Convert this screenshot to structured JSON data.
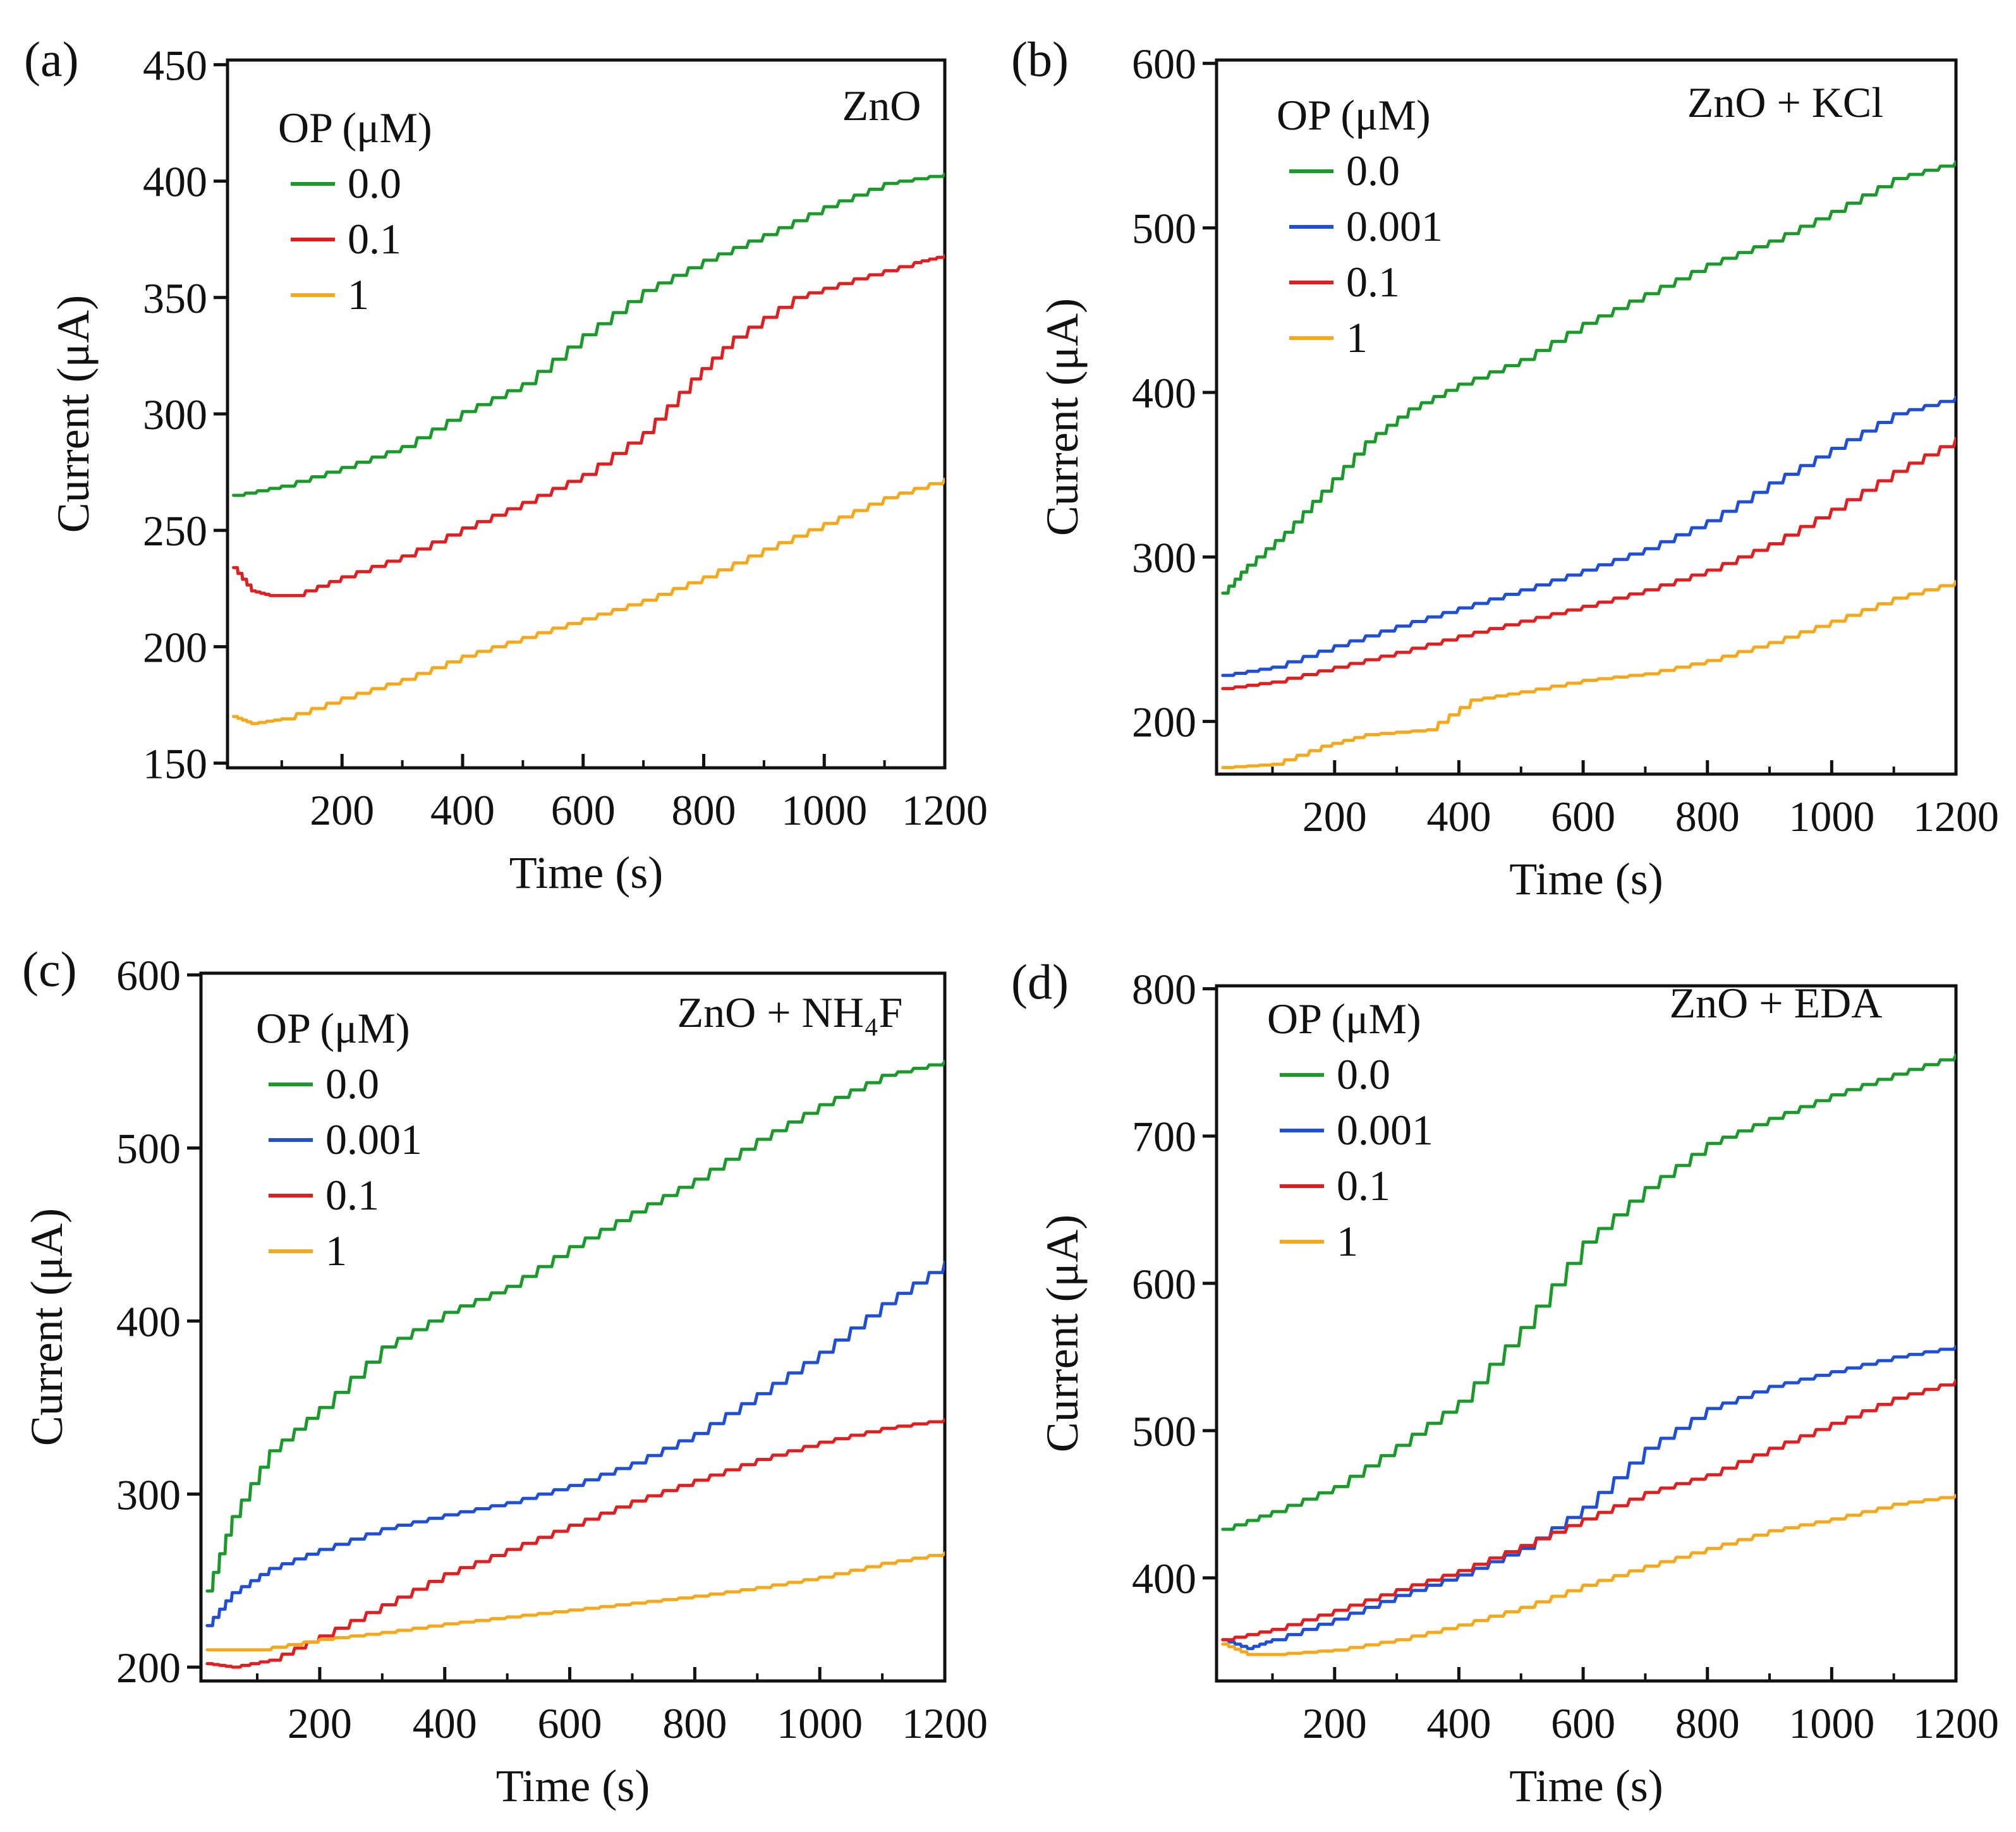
{
  "figure": {
    "x_label": "Time (s)",
    "y_label": "Current (μA)",
    "legend_title": "OP (μM)",
    "series_colors": {
      "0.0": "#1a9a2a",
      "0.001": "#1f4fd6",
      "0.1": "#e02020",
      "1": "#f5a81c"
    }
  },
  "chart_data": [
    {
      "panel": "(a)",
      "type": "line",
      "title": "ZnO",
      "xlabel": "Time (s)",
      "ylabel": "Current (μA)",
      "xlim": [
        10,
        1200
      ],
      "ylim": [
        148,
        452
      ],
      "xticks": [
        200,
        400,
        600,
        800,
        1000,
        1200
      ],
      "yticks": [
        150,
        200,
        250,
        300,
        350,
        400,
        450
      ],
      "legend_title": "OP (μM)",
      "series": [
        {
          "name": "0.0",
          "color": "#1a9a2a",
          "points": [
            [
              20,
              265
            ],
            [
              100,
              269
            ],
            [
              200,
              277
            ],
            [
              300,
              286
            ],
            [
              400,
              301
            ],
            [
              500,
              313
            ],
            [
              600,
              334
            ],
            [
              700,
              353
            ],
            [
              800,
              366
            ],
            [
              900,
              377
            ],
            [
              1000,
              389
            ],
            [
              1100,
              399
            ],
            [
              1200,
              403
            ]
          ]
        },
        {
          "name": "0.1",
          "color": "#e02020",
          "points": [
            [
              20,
              234
            ],
            [
              50,
              224
            ],
            [
              80,
              222
            ],
            [
              120,
              222
            ],
            [
              200,
              230
            ],
            [
              300,
              239
            ],
            [
              400,
              251
            ],
            [
              500,
              262
            ],
            [
              600,
              274
            ],
            [
              700,
              292
            ],
            [
              780,
              315
            ],
            [
              850,
              333
            ],
            [
              950,
              350
            ],
            [
              1050,
              358
            ],
            [
              1150,
              365
            ],
            [
              1200,
              368
            ]
          ]
        },
        {
          "name": "1",
          "color": "#f5a81c",
          "points": [
            [
              20,
              170
            ],
            [
              50,
              167
            ],
            [
              100,
              169
            ],
            [
              200,
              178
            ],
            [
              300,
              186
            ],
            [
              400,
              196
            ],
            [
              500,
              204
            ],
            [
              600,
              212
            ],
            [
              700,
              220
            ],
            [
              800,
              230
            ],
            [
              900,
              242
            ],
            [
              1000,
              253
            ],
            [
              1100,
              264
            ],
            [
              1200,
              272
            ]
          ]
        }
      ]
    },
    {
      "panel": "(b)",
      "type": "line",
      "title": "ZnO + KCl",
      "xlabel": "Time (s)",
      "ylabel": "Current (μA)",
      "xlim": [
        10,
        1200
      ],
      "ylim": [
        168,
        602
      ],
      "xticks": [
        200,
        400,
        600,
        800,
        1000,
        1200
      ],
      "yticks": [
        200,
        300,
        400,
        500,
        600
      ],
      "legend_title": "OP (μM)",
      "series": [
        {
          "name": "0.0",
          "color": "#1a9a2a",
          "points": [
            [
              20,
              278
            ],
            [
              60,
              295
            ],
            [
              120,
              315
            ],
            [
              180,
              340
            ],
            [
              250,
              370
            ],
            [
              320,
              390
            ],
            [
              400,
              405
            ],
            [
              500,
              420
            ],
            [
              600,
              442
            ],
            [
              700,
              460
            ],
            [
              800,
              478
            ],
            [
              900,
              492
            ],
            [
              1000,
              510
            ],
            [
              1100,
              530
            ],
            [
              1200,
              540
            ]
          ]
        },
        {
          "name": "0.001",
          "color": "#1f4fd6",
          "points": [
            [
              20,
              228
            ],
            [
              100,
              233
            ],
            [
              200,
              246
            ],
            [
              300,
              258
            ],
            [
              400,
              269
            ],
            [
              500,
              280
            ],
            [
              600,
              292
            ],
            [
              700,
              305
            ],
            [
              800,
              322
            ],
            [
              900,
              345
            ],
            [
              1000,
              366
            ],
            [
              1100,
              387
            ],
            [
              1200,
              397
            ]
          ]
        },
        {
          "name": "0.1",
          "color": "#e02020",
          "points": [
            [
              20,
              220
            ],
            [
              100,
              224
            ],
            [
              200,
              233
            ],
            [
              300,
              242
            ],
            [
              400,
              252
            ],
            [
              500,
              261
            ],
            [
              600,
              270
            ],
            [
              700,
              280
            ],
            [
              800,
              292
            ],
            [
              900,
              308
            ],
            [
              1000,
              329
            ],
            [
              1100,
              352
            ],
            [
              1200,
              372
            ]
          ]
        },
        {
          "name": "1",
          "color": "#f5a81c",
          "points": [
            [
              20,
              172
            ],
            [
              100,
              174
            ],
            [
              180,
              185
            ],
            [
              250,
              192
            ],
            [
              350,
              195
            ],
            [
              420,
              213
            ],
            [
              500,
              218
            ],
            [
              600,
              225
            ],
            [
              700,
              229
            ],
            [
              800,
              237
            ],
            [
              900,
              248
            ],
            [
              1000,
              261
            ],
            [
              1100,
              275
            ],
            [
              1200,
              285
            ]
          ]
        }
      ]
    },
    {
      "panel": "(c)",
      "type": "line",
      "title": "ZnO + NH₄F",
      "xlabel": "Time (s)",
      "ylabel": "Current (μA)",
      "xlim": [
        10,
        1200
      ],
      "ylim": [
        192,
        601
      ],
      "xticks": [
        200,
        400,
        600,
        800,
        1000,
        1200
      ],
      "yticks": [
        200,
        300,
        400,
        500,
        600
      ],
      "legend_title": "OP (μM)",
      "series": [
        {
          "name": "0.0",
          "color": "#1a9a2a",
          "points": [
            [
              20,
              244
            ],
            [
              60,
              287
            ],
            [
              120,
              325
            ],
            [
              200,
              350
            ],
            [
              300,
              385
            ],
            [
              400,
              405
            ],
            [
              500,
              420
            ],
            [
              600,
              443
            ],
            [
              700,
              463
            ],
            [
              800,
              482
            ],
            [
              900,
              505
            ],
            [
              1000,
              525
            ],
            [
              1100,
              542
            ],
            [
              1200,
              550
            ]
          ]
        },
        {
          "name": "0.001",
          "color": "#1f4fd6",
          "points": [
            [
              20,
              224
            ],
            [
              60,
              243
            ],
            [
              120,
              257
            ],
            [
              200,
              268
            ],
            [
              300,
              280
            ],
            [
              400,
              288
            ],
            [
              500,
              295
            ],
            [
              600,
              305
            ],
            [
              700,
              318
            ],
            [
              800,
              335
            ],
            [
              900,
              358
            ],
            [
              1000,
              382
            ],
            [
              1100,
              410
            ],
            [
              1200,
              434
            ]
          ]
        },
        {
          "name": "0.1",
          "color": "#e02020",
          "points": [
            [
              20,
              202
            ],
            [
              60,
              200
            ],
            [
              120,
              204
            ],
            [
              200,
              218
            ],
            [
              300,
              236
            ],
            [
              400,
              254
            ],
            [
              500,
              268
            ],
            [
              600,
              282
            ],
            [
              700,
              296
            ],
            [
              800,
              308
            ],
            [
              900,
              320
            ],
            [
              1000,
              330
            ],
            [
              1100,
              338
            ],
            [
              1200,
              343
            ]
          ]
        },
        {
          "name": "1",
          "color": "#f5a81c",
          "points": [
            [
              20,
              210
            ],
            [
              100,
              210
            ],
            [
              200,
              216
            ],
            [
              300,
              220
            ],
            [
              400,
              225
            ],
            [
              500,
              229
            ],
            [
              600,
              233
            ],
            [
              700,
              237
            ],
            [
              800,
              241
            ],
            [
              900,
              246
            ],
            [
              1000,
              252
            ],
            [
              1100,
              260
            ],
            [
              1200,
              266
            ]
          ]
        }
      ]
    },
    {
      "panel": "(d)",
      "type": "line",
      "title": "ZnO + EDA",
      "xlabel": "Time (s)",
      "ylabel": "Current (μA)",
      "xlim": [
        10,
        1200
      ],
      "ylim": [
        330,
        802
      ],
      "xticks": [
        200,
        400,
        600,
        800,
        1000,
        1200
      ],
      "yticks": [
        400,
        500,
        600,
        700,
        800
      ],
      "legend_title": "OP (μM)",
      "series": [
        {
          "name": "0.0",
          "color": "#1a9a2a",
          "points": [
            [
              20,
              433
            ],
            [
              100,
              445
            ],
            [
              200,
              462
            ],
            [
              300,
              490
            ],
            [
              400,
              520
            ],
            [
              500,
              570
            ],
            [
              600,
              628
            ],
            [
              700,
              665
            ],
            [
              800,
              695
            ],
            [
              900,
              712
            ],
            [
              1000,
              728
            ],
            [
              1100,
              742
            ],
            [
              1200,
              755
            ]
          ]
        },
        {
          "name": "0.001",
          "color": "#1f4fd6",
          "points": [
            [
              20,
              358
            ],
            [
              60,
              352
            ],
            [
              100,
              358
            ],
            [
              200,
              372
            ],
            [
              300,
              388
            ],
            [
              400,
              402
            ],
            [
              500,
              420
            ],
            [
              600,
              448
            ],
            [
              700,
              488
            ],
            [
              800,
              515
            ],
            [
              900,
              530
            ],
            [
              1000,
              540
            ],
            [
              1100,
              550
            ],
            [
              1200,
              557
            ]
          ]
        },
        {
          "name": "0.1",
          "color": "#e02020",
          "points": [
            [
              20,
              358
            ],
            [
              100,
              365
            ],
            [
              200,
              378
            ],
            [
              300,
              392
            ],
            [
              400,
              405
            ],
            [
              500,
              422
            ],
            [
              600,
              440
            ],
            [
              700,
              458
            ],
            [
              800,
              470
            ],
            [
              900,
              488
            ],
            [
              1000,
              505
            ],
            [
              1100,
              522
            ],
            [
              1200,
              534
            ]
          ]
        },
        {
          "name": "1",
          "color": "#f5a81c",
          "points": [
            [
              20,
              355
            ],
            [
              60,
              348
            ],
            [
              100,
              348
            ],
            [
              200,
              351
            ],
            [
              300,
              358
            ],
            [
              400,
              368
            ],
            [
              500,
              380
            ],
            [
              600,
              395
            ],
            [
              700,
              408
            ],
            [
              800,
              420
            ],
            [
              900,
              432
            ],
            [
              1000,
              440
            ],
            [
              1100,
              450
            ],
            [
              1200,
              456
            ]
          ]
        }
      ]
    }
  ]
}
